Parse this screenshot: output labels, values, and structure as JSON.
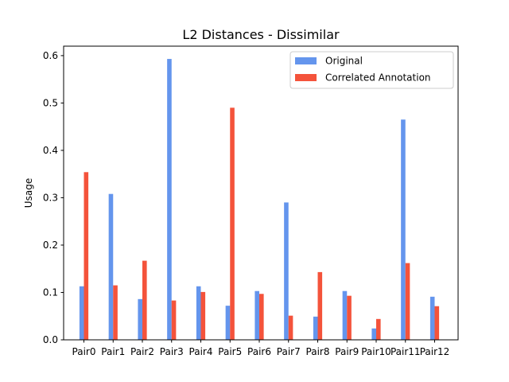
{
  "chart_data": {
    "type": "bar",
    "title": "L2 Distances - Dissimilar",
    "xlabel": "",
    "ylabel": "Usage",
    "ylim": [
      0,
      0.62
    ],
    "yticks": [
      "0.0",
      "0.1",
      "0.2",
      "0.3",
      "0.4",
      "0.5",
      "0.6"
    ],
    "categories": [
      "Pair0",
      "Pair1",
      "Pair2",
      "Pair3",
      "Pair4",
      "Pair5",
      "Pair6",
      "Pair7",
      "Pair8",
      "Pair9",
      "Pair10",
      "Pair11",
      "Pair12"
    ],
    "series": [
      {
        "name": "Original",
        "color": "#6495ed",
        "values": [
          0.113,
          0.308,
          0.086,
          0.593,
          0.113,
          0.072,
          0.103,
          0.29,
          0.049,
          0.103,
          0.024,
          0.465,
          0.091
        ]
      },
      {
        "name": "Correlated Annotation",
        "color": "#f4533b",
        "values": [
          0.354,
          0.115,
          0.167,
          0.083,
          0.101,
          0.49,
          0.097,
          0.051,
          0.143,
          0.093,
          0.044,
          0.162,
          0.071
        ]
      }
    ],
    "legend_position": "top-right",
    "grid": false
  }
}
